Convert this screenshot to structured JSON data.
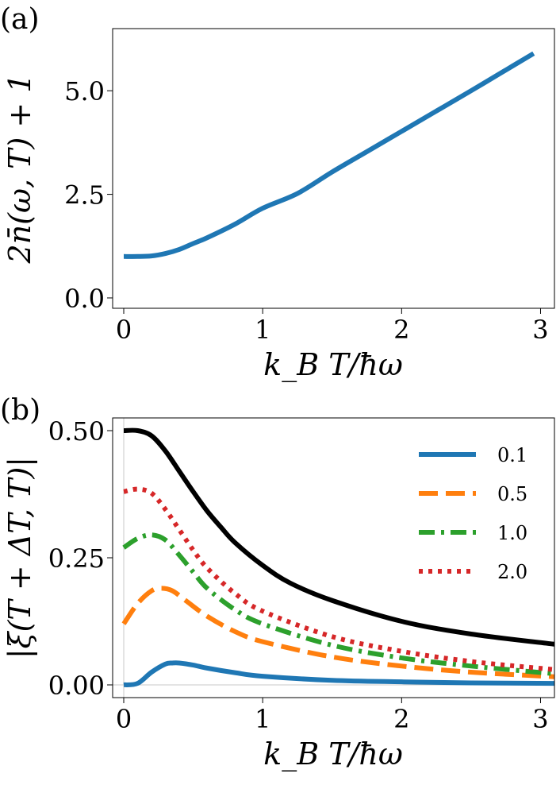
{
  "chart_data": [
    {
      "type": "line",
      "panel_label": "(a)",
      "xlabel": "k_B T/ħω",
      "ylabel": "2n̄(ω, T) + 1",
      "xlim": [
        -0.08,
        3.1
      ],
      "ylim": [
        -0.25,
        6.5
      ],
      "xticks": [
        0,
        1,
        2,
        3
      ],
      "xtick_labels": [
        "0",
        "1",
        "2",
        "3"
      ],
      "yticks": [
        0.0,
        2.5,
        5.0
      ],
      "ytick_labels": [
        "0.0",
        "2.5",
        "5.0"
      ],
      "grid": false,
      "series": [
        {
          "color": "#1f77b4",
          "style": "solid",
          "x": [
            0.0,
            0.1,
            0.2,
            0.3,
            0.4,
            0.5,
            0.6,
            0.8,
            1.0,
            1.25,
            1.5,
            1.75,
            2.0,
            2.25,
            2.5,
            2.75,
            2.95
          ],
          "y": [
            1.0,
            1.0,
            1.013,
            1.072,
            1.17,
            1.313,
            1.452,
            1.779,
            2.164,
            2.52,
            3.04,
            3.53,
            4.02,
            4.51,
            5.0,
            5.5,
            5.9
          ]
        }
      ]
    },
    {
      "type": "line",
      "panel_label": "(b)",
      "xlabel": "k_B T/ħω",
      "ylabel": "|ξ(T + ΔT, T)|",
      "xlim": [
        -0.08,
        3.1
      ],
      "ylim": [
        -0.025,
        0.525
      ],
      "xticks": [
        0,
        1,
        2,
        3
      ],
      "xtick_labels": [
        "0",
        "1",
        "2",
        "3"
      ],
      "yticks": [
        0.0,
        0.25,
        0.5
      ],
      "ytick_labels": [
        "0.00",
        "0.25",
        "0.50"
      ],
      "grid": false,
      "legend_position": "top-right",
      "series": [
        {
          "color": "#000000",
          "style": "solid",
          "x": [
            0.0,
            0.1,
            0.2,
            0.3,
            0.4,
            0.5,
            0.6,
            0.7,
            0.8,
            1.0,
            1.2,
            1.5,
            2.0,
            2.5,
            3.1
          ],
          "y": [
            0.5,
            0.5,
            0.49,
            0.46,
            0.42,
            0.38,
            0.342,
            0.31,
            0.28,
            0.235,
            0.2,
            0.166,
            0.125,
            0.1,
            0.08
          ]
        },
        {
          "name": "0.1",
          "color": "#1f77b4",
          "style": "solid",
          "x": [
            0.0,
            0.1,
            0.2,
            0.3,
            0.35,
            0.4,
            0.5,
            0.6,
            0.8,
            1.0,
            1.5,
            2.0,
            2.5,
            3.1
          ],
          "y": [
            0.0,
            0.003,
            0.025,
            0.041,
            0.043,
            0.043,
            0.039,
            0.033,
            0.024,
            0.017,
            0.009,
            0.006,
            0.004,
            0.003
          ]
        },
        {
          "name": "0.5",
          "color": "#ff7f0e",
          "style": "dashed",
          "x": [
            0.0,
            0.1,
            0.2,
            0.27,
            0.35,
            0.45,
            0.6,
            0.8,
            1.0,
            1.5,
            2.0,
            2.5,
            3.1
          ],
          "y": [
            0.12,
            0.16,
            0.185,
            0.19,
            0.185,
            0.165,
            0.135,
            0.105,
            0.085,
            0.055,
            0.037,
            0.025,
            0.016
          ]
        },
        {
          "name": "1.0",
          "color": "#2ca02c",
          "style": "dashdot",
          "x": [
            0.0,
            0.1,
            0.2,
            0.3,
            0.4,
            0.5,
            0.6,
            0.8,
            1.0,
            1.5,
            2.0,
            2.5,
            3.1
          ],
          "y": [
            0.27,
            0.288,
            0.295,
            0.285,
            0.255,
            0.222,
            0.19,
            0.148,
            0.12,
            0.078,
            0.053,
            0.037,
            0.022
          ]
        },
        {
          "name": "2.0",
          "color": "#d62728",
          "style": "dotted",
          "x": [
            0.0,
            0.1,
            0.2,
            0.3,
            0.4,
            0.5,
            0.6,
            0.8,
            1.0,
            1.5,
            2.0,
            2.5,
            3.1
          ],
          "y": [
            0.38,
            0.385,
            0.377,
            0.345,
            0.305,
            0.265,
            0.23,
            0.18,
            0.145,
            0.095,
            0.066,
            0.046,
            0.03
          ]
        }
      ]
    }
  ]
}
